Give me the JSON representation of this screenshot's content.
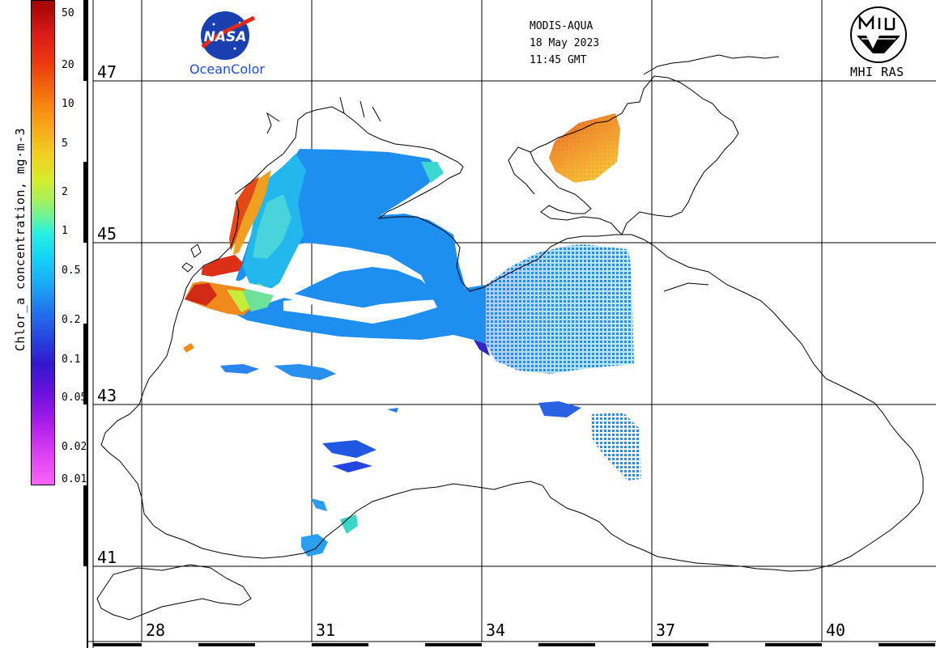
{
  "header": {
    "sensor": "MODIS-AQUA",
    "date": "18 May 2023",
    "time": "11:45 GMT"
  },
  "logos": {
    "nasa_text": "NASA",
    "oceancolor_text": "OceanColor",
    "institute_text": "MHI RAS"
  },
  "colorbar": {
    "title": "Chlor_a concentration, mg·m-3",
    "ticks": [
      "50",
      "20",
      "10",
      "5",
      "2",
      "1",
      "0.5",
      "0.2",
      "0.1",
      "0.05",
      "0.02",
      "0.01"
    ],
    "palette": [
      "#a00000",
      "#ec3a10",
      "#f7a81a",
      "#f0d020",
      "#a8f05a",
      "#28f0e0",
      "#1aa6f2",
      "#2842e0",
      "#6a10de",
      "#d83cf0",
      "#fb64fb"
    ]
  },
  "grid": {
    "latitudes": [
      "47",
      "45",
      "43",
      "41"
    ],
    "longitudes": [
      "28",
      "31",
      "34",
      "37",
      "40"
    ]
  }
}
